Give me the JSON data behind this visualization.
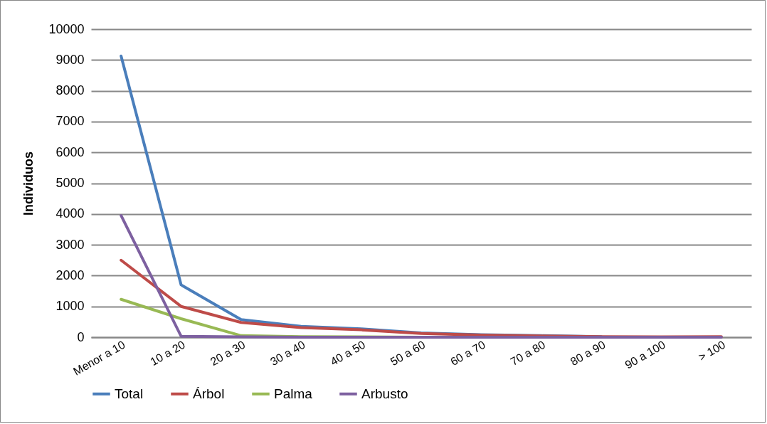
{
  "chart_data": {
    "type": "line",
    "ylabel": "Individuos",
    "categories": [
      "Menor a 10",
      "10 a 20",
      "20 a 30",
      "30 a 40",
      "40 a 50",
      "50 a 60",
      "60 a 70",
      "70 a 80",
      "80 a 90",
      "90 a 100",
      "> 100"
    ],
    "series": [
      {
        "name": "Total",
        "color": "#4a7ebb",
        "values": [
          9130,
          1700,
          570,
          350,
          270,
          140,
          80,
          50,
          20,
          null,
          null
        ]
      },
      {
        "name": "Árbol",
        "color": "#be4b48",
        "values": [
          2500,
          1000,
          480,
          310,
          240,
          120,
          70,
          40,
          20,
          10,
          20
        ]
      },
      {
        "name": "Palma",
        "color": "#98b954",
        "values": [
          1230,
          600,
          50,
          20,
          10,
          0,
          0,
          null,
          null,
          null,
          null
        ]
      },
      {
        "name": "Arbusto",
        "color": "#7d60a0",
        "values": [
          3950,
          30,
          10,
          0,
          0,
          0,
          0,
          0,
          0,
          0,
          0
        ]
      }
    ],
    "ylim": [
      0,
      10000
    ],
    "yticks": [
      0,
      1000,
      2000,
      3000,
      4000,
      5000,
      6000,
      7000,
      8000,
      9000,
      10000
    ],
    "grid": "y",
    "legend": "bottom",
    "marker": "none",
    "line_style": "solid"
  }
}
